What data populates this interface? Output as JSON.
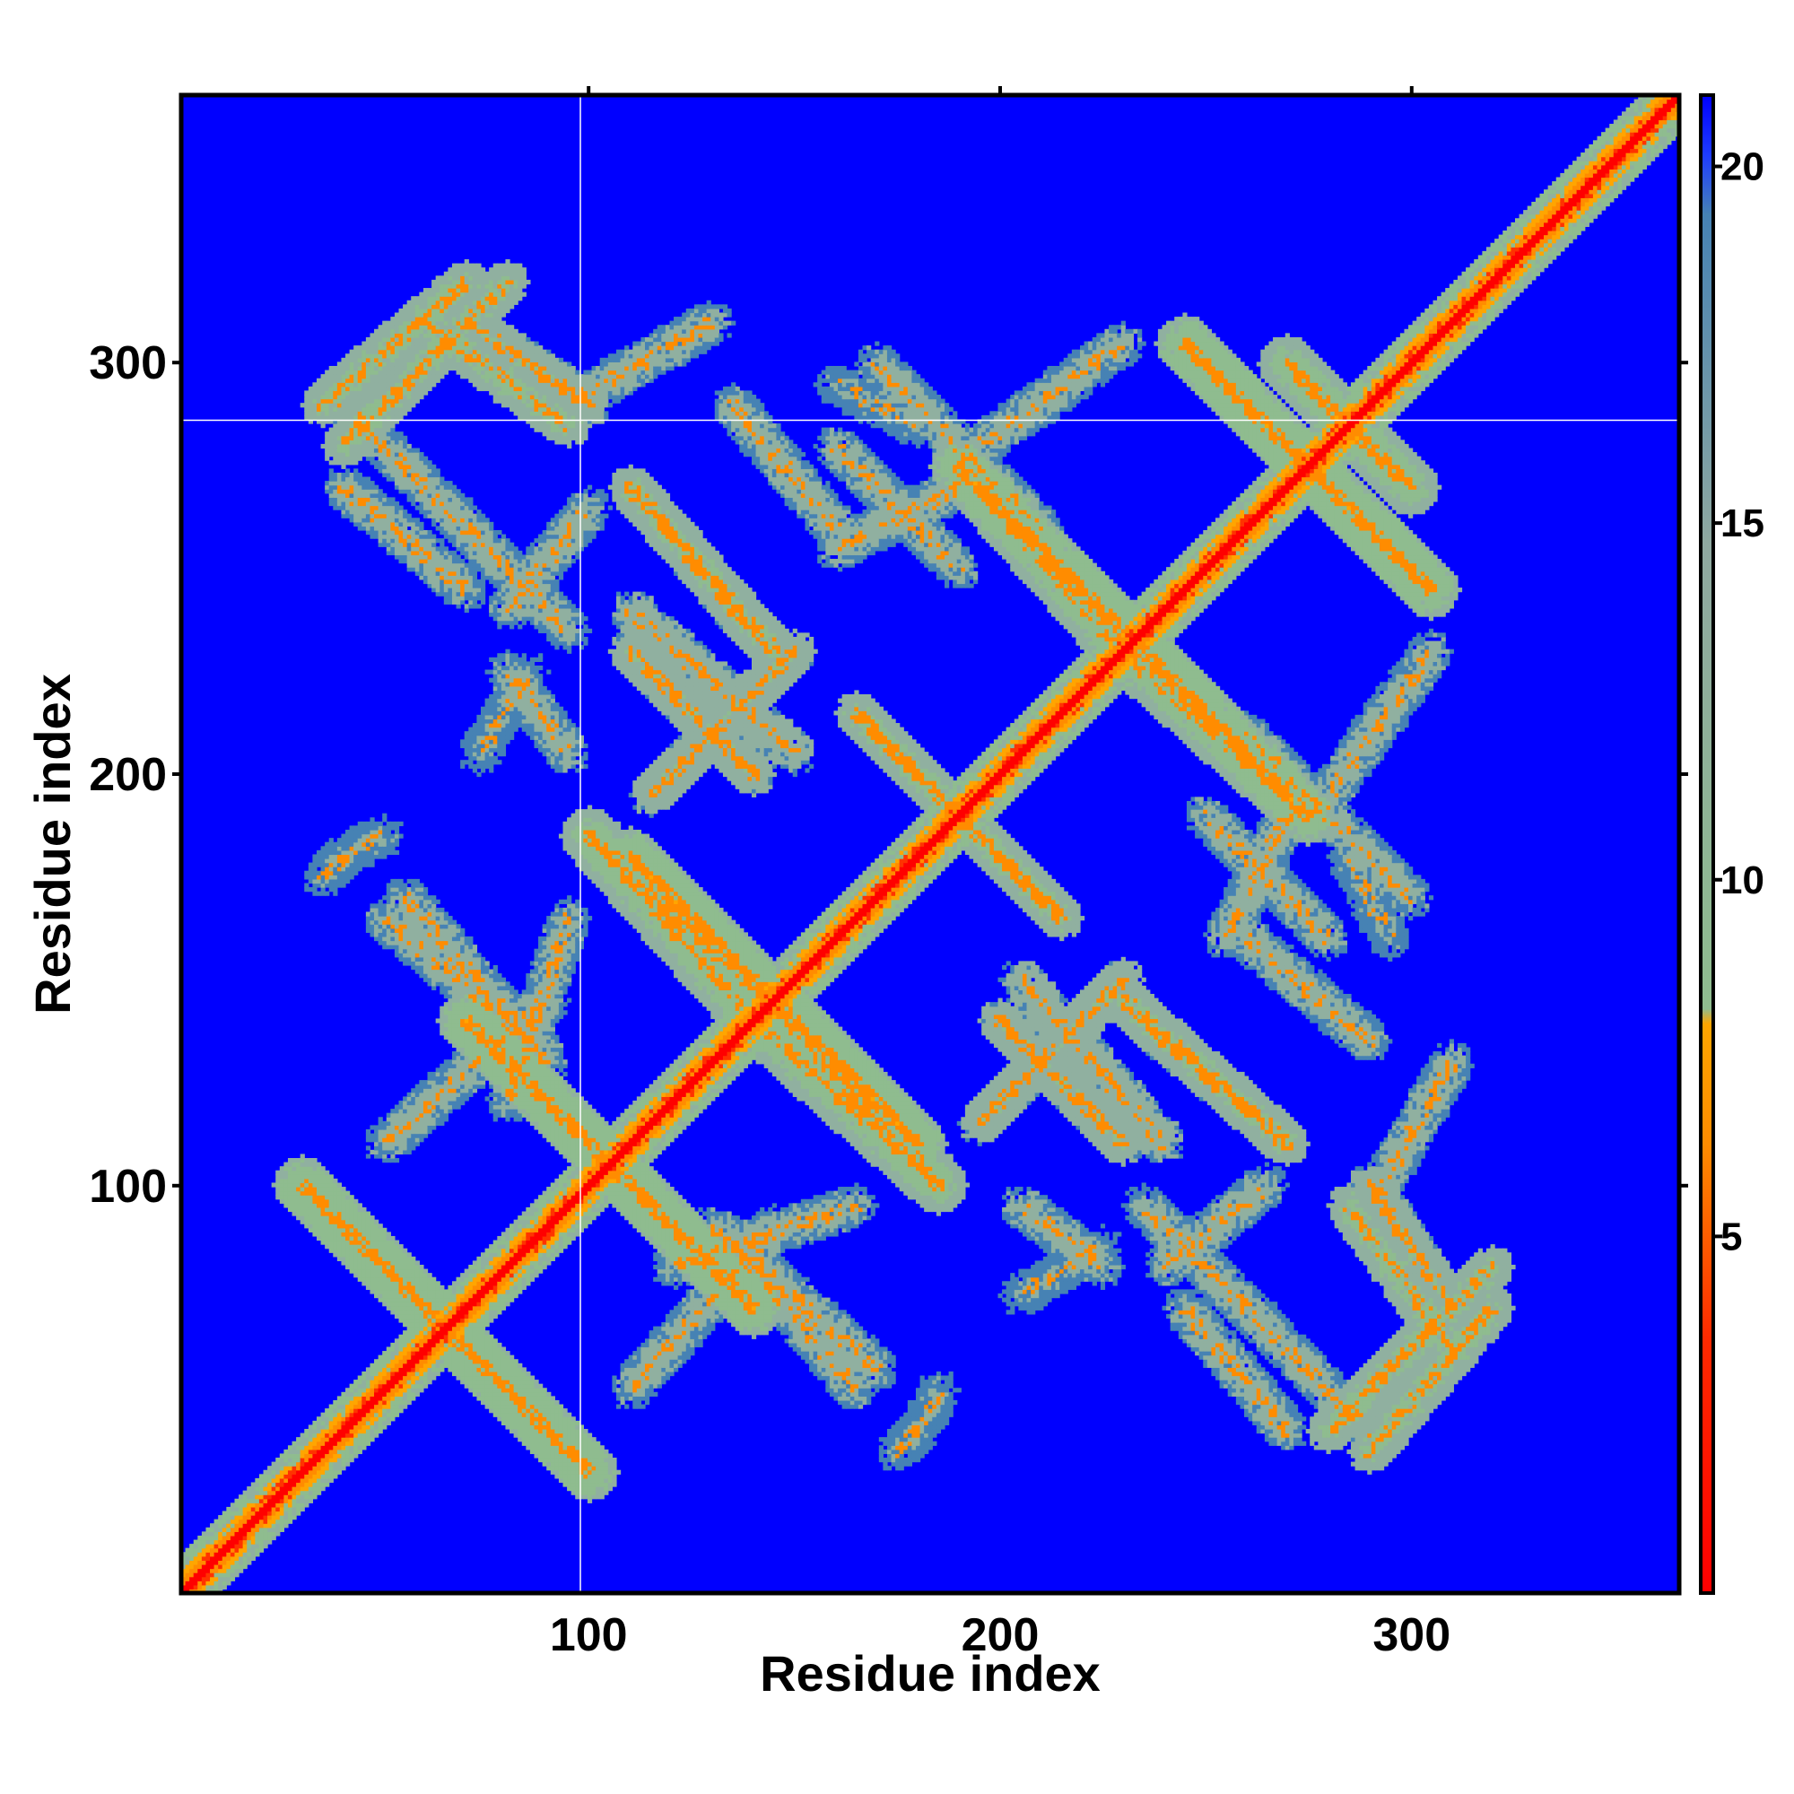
{
  "chart_data": {
    "type": "heatmap",
    "title": "",
    "xlabel": "Residue index",
    "ylabel": "Residue index",
    "xlim": [
      1,
      365
    ],
    "ylim": [
      1,
      365
    ],
    "x_ticks": [
      100,
      200,
      300
    ],
    "x_tick_labels": [
      "100",
      "200",
      "300"
    ],
    "y_ticks": [
      100,
      200,
      300
    ],
    "y_tick_labels": [
      "100",
      "200",
      "300"
    ],
    "grid": false,
    "reference_lines": {
      "x": 98,
      "y": 286
    },
    "colorbar": {
      "ticks": [
        5,
        10,
        15,
        20
      ],
      "tick_labels": [
        "5",
        "10",
        "15",
        "20"
      ],
      "range": [
        0,
        21
      ],
      "colors": {
        "contact": "#ff0000",
        "close": "#ff8c00",
        "mid": "#8fbc8f",
        "far": "#4682b4",
        "background": "#0000ff"
      }
    },
    "diagonal_band": {
      "from": 1,
      "to": 365
    },
    "features": [
      {
        "x1": 30,
        "y1": 100,
        "x2": 100,
        "y2": 30,
        "value": 8
      },
      {
        "x1": 70,
        "y1": 140,
        "x2": 140,
        "y2": 70,
        "value": 8
      },
      {
        "x1": 110,
        "y1": 180,
        "x2": 180,
        "y2": 110,
        "value": 8
      },
      {
        "x1": 100,
        "y1": 185,
        "x2": 165,
        "y2": 125,
        "value": 9
      },
      {
        "x1": 140,
        "y1": 140,
        "x2": 185,
        "y2": 100,
        "value": 9
      },
      {
        "x1": 165,
        "y1": 215,
        "x2": 215,
        "y2": 165,
        "value": 10
      },
      {
        "x1": 190,
        "y1": 275,
        "x2": 270,
        "y2": 195,
        "value": 8
      },
      {
        "x1": 230,
        "y1": 230,
        "x2": 275,
        "y2": 190,
        "value": 9
      },
      {
        "x1": 245,
        "y1": 305,
        "x2": 305,
        "y2": 245,
        "value": 8
      },
      {
        "x1": 270,
        "y1": 300,
        "x2": 300,
        "y2": 270,
        "value": 9
      },
      {
        "x1": 35,
        "y1": 290,
        "x2": 70,
        "y2": 320,
        "value": 10
      },
      {
        "x1": 70,
        "y1": 310,
        "x2": 100,
        "y2": 290,
        "value": 11
      },
      {
        "x1": 110,
        "y1": 270,
        "x2": 145,
        "y2": 230,
        "value": 10
      },
      {
        "x1": 115,
        "y1": 195,
        "x2": 150,
        "y2": 230,
        "value": 11
      },
      {
        "x1": 200,
        "y1": 140,
        "x2": 230,
        "y2": 110,
        "value": 11
      },
      {
        "x1": 235,
        "y1": 140,
        "x2": 270,
        "y2": 110,
        "value": 11
      },
      {
        "x1": 285,
        "y1": 95,
        "x2": 310,
        "y2": 60,
        "value": 10
      },
      {
        "x1": 280,
        "y1": 40,
        "x2": 320,
        "y2": 80,
        "value": 10
      },
      {
        "x1": 40,
        "y1": 290,
        "x2": 95,
        "y2": 235,
        "value": 13
      },
      {
        "x1": 110,
        "y1": 240,
        "x2": 150,
        "y2": 205,
        "value": 12
      },
      {
        "x1": 135,
        "y1": 290,
        "x2": 160,
        "y2": 260,
        "value": 13
      },
      {
        "x1": 160,
        "y1": 280,
        "x2": 190,
        "y2": 250,
        "value": 13
      },
      {
        "x1": 170,
        "y1": 300,
        "x2": 210,
        "y2": 260,
        "value": 13
      },
      {
        "x1": 80,
        "y1": 120,
        "x2": 95,
        "y2": 165,
        "value": 13
      },
      {
        "x1": 55,
        "y1": 170,
        "x2": 90,
        "y2": 130,
        "value": 13
      },
      {
        "x1": 110,
        "y1": 50,
        "x2": 145,
        "y2": 90,
        "value": 13
      },
      {
        "x1": 140,
        "y1": 80,
        "x2": 165,
        "y2": 50,
        "value": 13
      },
      {
        "x1": 205,
        "y1": 95,
        "x2": 225,
        "y2": 80,
        "value": 13
      },
      {
        "x1": 240,
        "y1": 80,
        "x2": 265,
        "y2": 100,
        "value": 13
      },
      {
        "x1": 245,
        "y1": 70,
        "x2": 270,
        "y2": 40,
        "value": 13
      },
      {
        "x1": 255,
        "y1": 160,
        "x2": 270,
        "y2": 190,
        "value": 13
      },
      {
        "x1": 280,
        "y1": 195,
        "x2": 305,
        "y2": 230,
        "value": 13
      },
      {
        "x1": 290,
        "y1": 95,
        "x2": 310,
        "y2": 130,
        "value": 13
      },
      {
        "x1": 285,
        "y1": 180,
        "x2": 295,
        "y2": 160,
        "value": 14
      },
      {
        "x1": 35,
        "y1": 175,
        "x2": 40,
        "y2": 180,
        "value": 14
      },
      {
        "x1": 180,
        "y1": 40,
        "x2": 185,
        "y2": 50,
        "value": 14
      },
      {
        "x1": 73,
        "y1": 205,
        "x2": 85,
        "y2": 225,
        "value": 14
      }
    ]
  }
}
